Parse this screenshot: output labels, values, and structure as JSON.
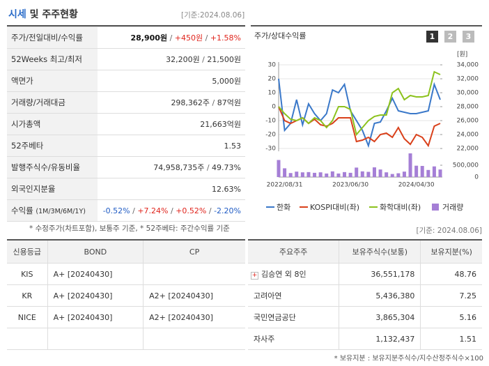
{
  "header": {
    "title_highlight": "시세",
    "title_rest": "및 주주현황",
    "date": "[기준:2024.08.06]"
  },
  "info_table": {
    "rows": [
      {
        "label": "주가/전일대비/수익률",
        "values": [
          "28,900원",
          "+450원",
          "+1.58%"
        ]
      },
      {
        "label": "52Weeks 최고/최저",
        "values": [
          "32,200원",
          "21,500원"
        ]
      },
      {
        "label": "액면가",
        "values": [
          "5,000원"
        ]
      },
      {
        "label": "거래량/거래대금",
        "values": [
          "298,362주",
          "87억원"
        ]
      },
      {
        "label": "시가총액",
        "values": [
          "21,663억원"
        ]
      },
      {
        "label": "52주베타",
        "values": [
          "1.53"
        ]
      },
      {
        "label": "발행주식수/유동비율",
        "values": [
          "74,958,735주",
          "49.73%"
        ]
      },
      {
        "label": "외국인지분율",
        "values": [
          "12.63%"
        ]
      },
      {
        "label": "수익률",
        "sub": "(1M/3M/6M/1Y)",
        "values": [
          "-0.52%",
          "+7.24%",
          "+0.52%",
          "-2.20%"
        ]
      }
    ],
    "note": "* 수정주가(차트포함), 보통주 기준, * 52주베타: 주간수익률 기준"
  },
  "chart_panel": {
    "title": "주가/상대수익률",
    "buttons": [
      "1",
      "2",
      "3"
    ]
  },
  "chart_data": {
    "type": "line",
    "y2_unit": "[원]",
    "categories": [
      null,
      "2022/08/31",
      null,
      null,
      null,
      null,
      null,
      null,
      null,
      null,
      null,
      null,
      "2023/06/30",
      null,
      null,
      null,
      null,
      null,
      null,
      null,
      null,
      null,
      null,
      "2024/04/30",
      null,
      null,
      null,
      null
    ],
    "series": [
      {
        "name": "한화",
        "color": "#3a78c9",
        "values": [
          20,
          -17,
          -12,
          5,
          -13,
          2,
          -5,
          -10,
          -5,
          12,
          10,
          16,
          -3,
          -10,
          -17,
          -28,
          -12,
          -11,
          -3,
          6,
          -3,
          -4,
          -5,
          -5,
          -4,
          -3,
          16,
          5
        ]
      },
      {
        "name": "KOSPI대비(좌)",
        "color": "#d9401a",
        "values": [
          0,
          -10,
          -12,
          -10,
          -8,
          -12,
          -9,
          -13,
          -14,
          -12,
          -8,
          -8,
          -8,
          -25,
          -24,
          -22,
          -25,
          -20,
          -19,
          -22,
          -15,
          -23,
          -27,
          -20,
          -22,
          -28,
          -14,
          -12
        ]
      },
      {
        "name": "화학대비(좌)",
        "color": "#8cc21d",
        "values": [
          0,
          -5,
          -9,
          -10,
          -8,
          -12,
          -8,
          -10,
          -15,
          -10,
          0,
          0,
          -2,
          -20,
          -15,
          -10,
          -7,
          -6,
          -6,
          10,
          13,
          5,
          8,
          7,
          7,
          8,
          25,
          23
        ]
      },
      {
        "name": "거래량",
        "color": "#a57fd6",
        "type": "bar",
        "axis": "y3",
        "values": [
          720000,
          370000,
          170000,
          230000,
          200000,
          210000,
          180000,
          200000,
          150000,
          240000,
          150000,
          210000,
          180000,
          400000,
          240000,
          220000,
          410000,
          320000,
          200000,
          130000,
          160000,
          230000,
          1000000,
          480000,
          470000,
          300000,
          450000,
          320000
        ]
      }
    ],
    "ylim": [
      -30,
      30
    ],
    "yticks": [
      30,
      20,
      10,
      0,
      -10,
      -20,
      -30
    ],
    "y2lim": [
      22000,
      34000
    ],
    "y2ticks": [
      {
        "value": 34000,
        "label": "34,000"
      },
      {
        "value": 32000,
        "label": "32,000"
      },
      {
        "value": 30000,
        "label": "30,000"
      },
      {
        "value": 28000,
        "label": "28,000"
      },
      {
        "value": 26000,
        "label": "26,000"
      },
      {
        "value": 24000,
        "label": "24,000"
      },
      {
        "value": 22000,
        "label": "22,000"
      }
    ],
    "y3lim": [
      0,
      500000
    ],
    "y3ticks": [
      {
        "value": 500000,
        "label": "500,000"
      },
      0
    ],
    "grid": true
  },
  "chart_note": "[기준: 2024.08.06]",
  "credit_table": {
    "header": [
      "신용등급",
      "BOND",
      "CP"
    ],
    "rows": [
      [
        "KIS",
        "A+ [20240430]",
        null
      ],
      [
        "KR",
        "A+ [20240430]",
        "A2+ [20240430]"
      ],
      [
        "NICE",
        "A+ [20240430]",
        "A2+ [20240430]"
      ],
      [
        null,
        null,
        null
      ]
    ]
  },
  "holder_table": {
    "header": [
      "주요주주",
      "보유주식수(보통)",
      "보유지분(%)"
    ],
    "rows": [
      [
        "김승연 외 8인",
        "36,551,178",
        "48.76"
      ],
      [
        "고려아연",
        "5,436,380",
        "7.25"
      ],
      [
        "국민연금공단",
        "3,865,304",
        "5.16"
      ],
      [
        "자사주",
        "1,132,437",
        "1.51"
      ]
    ],
    "note": "* 보유지분 : 보유지분주식수/지수산정주식수×100"
  }
}
